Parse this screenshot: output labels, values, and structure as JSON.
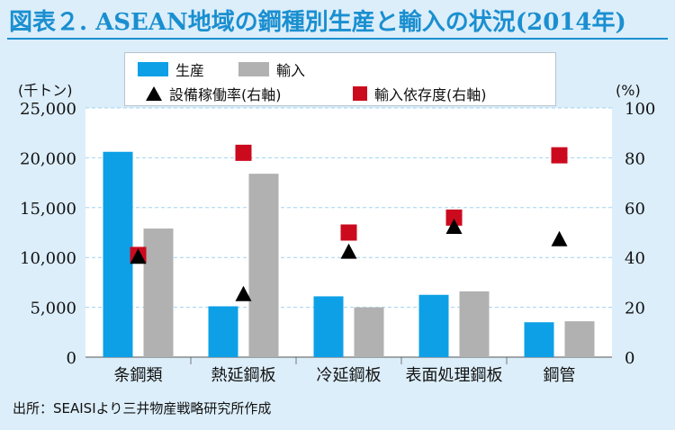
{
  "title": "図表２. ASEAN地域の鋼種別生産と輸入の状況(2014年)",
  "source": "出所：SEAISIより三井物産戦略研究所作成",
  "legend": {
    "production": "生産",
    "imports": "輸入",
    "utilization": "設備稼働率(右軸)",
    "import_dependency": "輸入依存度(右軸)"
  },
  "colors": {
    "production": "#0ea0e6",
    "imports": "#b1b1b1",
    "utilization": "#000000",
    "import_dependency": "#cc0a1e",
    "gridline": "#9fd4f0"
  },
  "chart_data": {
    "type": "bar",
    "categories": [
      "条鋼類",
      "熱延鋼板",
      "冷延鋼板",
      "表面処理鋼板",
      "鋼管"
    ],
    "series": [
      {
        "name": "生産",
        "type": "bar",
        "axis": "left",
        "values": [
          20600,
          5100,
          6100,
          6250,
          3500
        ]
      },
      {
        "name": "輸入",
        "type": "bar",
        "axis": "left",
        "values": [
          12900,
          18400,
          5000,
          6600,
          3600
        ]
      },
      {
        "name": "設備稼働率(右軸)",
        "type": "scatter",
        "marker": "triangle",
        "axis": "right",
        "values": [
          40,
          25,
          42,
          52,
          47
        ]
      },
      {
        "name": "輸入依存度(右軸)",
        "type": "scatter",
        "marker": "square",
        "axis": "right",
        "values": [
          41,
          82,
          50,
          56,
          81
        ]
      }
    ],
    "left_axis": {
      "unit": "(千トン)",
      "ylim": [
        0,
        25000
      ],
      "ticks": [
        "0",
        "5,000",
        "10,000",
        "15,000",
        "20,000",
        "25,000"
      ]
    },
    "right_axis": {
      "unit": "(%)",
      "ylim": [
        0,
        100
      ],
      "ticks": [
        "0",
        "20",
        "40",
        "60",
        "80",
        "100"
      ]
    },
    "grid": "horizontal dashed"
  }
}
